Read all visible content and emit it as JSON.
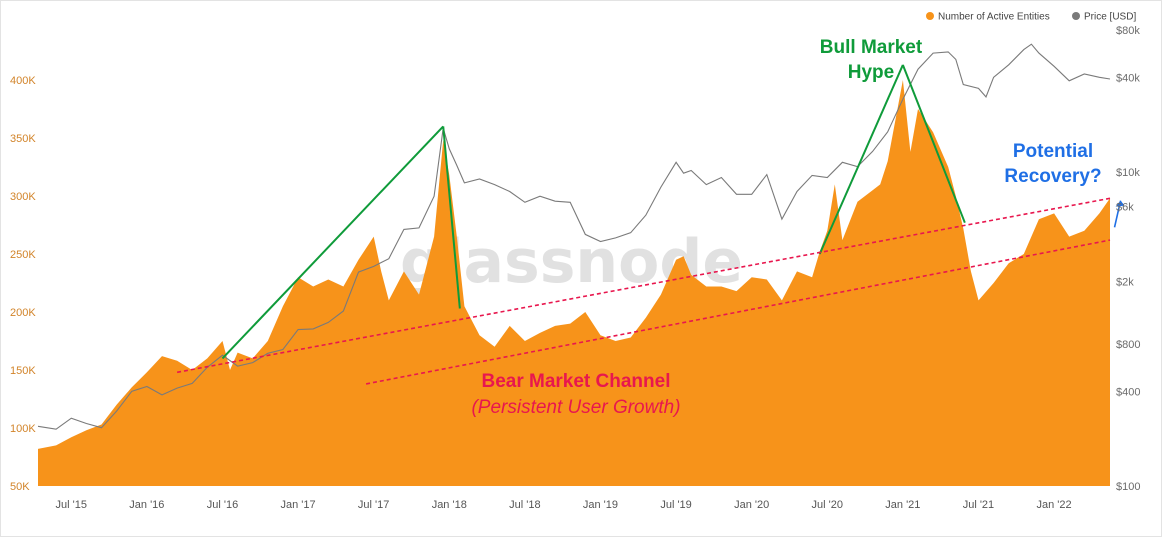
{
  "chart_data": {
    "type": "area",
    "title": "",
    "watermark": "glassnode",
    "legend": {
      "placement": "top-right",
      "entries": [
        {
          "label": "Number of Active Entities",
          "color": "#f7931a"
        },
        {
          "label": "Price [USD]",
          "color": "#7a7a7a"
        }
      ]
    },
    "y_left": {
      "label": "",
      "scale": "linear",
      "range": [
        50000,
        420000
      ],
      "ticks": [
        {
          "value": 50000,
          "label": "50K"
        },
        {
          "value": 100000,
          "label": "100K"
        },
        {
          "value": 150000,
          "label": "150K"
        },
        {
          "value": 200000,
          "label": "200K"
        },
        {
          "value": 250000,
          "label": "250K"
        },
        {
          "value": 300000,
          "label": "300K"
        },
        {
          "value": 350000,
          "label": "350K"
        },
        {
          "value": 400000,
          "label": "400K"
        }
      ]
    },
    "y_right": {
      "label": "",
      "scale": "log",
      "range": [
        100,
        80000
      ],
      "ticks": [
        {
          "value": 100,
          "label": "$100"
        },
        {
          "value": 400,
          "label": "$400"
        },
        {
          "value": 800,
          "label": "$800"
        },
        {
          "value": 2000,
          "label": "$2k"
        },
        {
          "value": 6000,
          "label": "$6k"
        },
        {
          "value": 10000,
          "label": "$10k"
        },
        {
          "value": 40000,
          "label": "$40k"
        },
        {
          "value": 80000,
          "label": "$80k"
        }
      ]
    },
    "x_axis": {
      "range": [
        2015.28,
        2022.37
      ],
      "ticks": [
        {
          "value": 2015.5,
          "label": "Jul '15"
        },
        {
          "value": 2016.0,
          "label": "Jan '16"
        },
        {
          "value": 2016.5,
          "label": "Jul '16"
        },
        {
          "value": 2017.0,
          "label": "Jan '17"
        },
        {
          "value": 2017.5,
          "label": "Jul '17"
        },
        {
          "value": 2018.0,
          "label": "Jan '18"
        },
        {
          "value": 2018.5,
          "label": "Jul '18"
        },
        {
          "value": 2019.0,
          "label": "Jan '19"
        },
        {
          "value": 2019.5,
          "label": "Jul '19"
        },
        {
          "value": 2020.0,
          "label": "Jan '20"
        },
        {
          "value": 2020.5,
          "label": "Jul '20"
        },
        {
          "value": 2021.0,
          "label": "Jan '21"
        },
        {
          "value": 2021.5,
          "label": "Jul '21"
        },
        {
          "value": 2022.0,
          "label": "Jan '22"
        }
      ]
    },
    "series": [
      {
        "name": "Number of Active Entities",
        "axis": "left",
        "type": "area",
        "color": "#f7931a",
        "points": [
          [
            2015.28,
            82000
          ],
          [
            2015.4,
            85000
          ],
          [
            2015.5,
            92000
          ],
          [
            2015.6,
            98000
          ],
          [
            2015.7,
            103000
          ],
          [
            2015.8,
            120000
          ],
          [
            2015.9,
            135000
          ],
          [
            2016.0,
            148000
          ],
          [
            2016.1,
            162000
          ],
          [
            2016.2,
            158000
          ],
          [
            2016.3,
            150000
          ],
          [
            2016.4,
            160000
          ],
          [
            2016.5,
            175000
          ],
          [
            2016.55,
            150000
          ],
          [
            2016.6,
            165000
          ],
          [
            2016.7,
            160000
          ],
          [
            2016.8,
            175000
          ],
          [
            2016.9,
            205000
          ],
          [
            2017.0,
            230000
          ],
          [
            2017.1,
            222000
          ],
          [
            2017.2,
            228000
          ],
          [
            2017.3,
            222000
          ],
          [
            2017.4,
            245000
          ],
          [
            2017.5,
            265000
          ],
          [
            2017.55,
            235000
          ],
          [
            2017.6,
            210000
          ],
          [
            2017.7,
            235000
          ],
          [
            2017.8,
            215000
          ],
          [
            2017.9,
            265000
          ],
          [
            2017.96,
            348000
          ],
          [
            2018.0,
            318000
          ],
          [
            2018.05,
            265000
          ],
          [
            2018.1,
            205000
          ],
          [
            2018.2,
            180000
          ],
          [
            2018.3,
            170000
          ],
          [
            2018.4,
            188000
          ],
          [
            2018.5,
            175000
          ],
          [
            2018.6,
            182000
          ],
          [
            2018.7,
            188000
          ],
          [
            2018.8,
            190000
          ],
          [
            2018.9,
            200000
          ],
          [
            2019.0,
            180000
          ],
          [
            2019.1,
            175000
          ],
          [
            2019.2,
            178000
          ],
          [
            2019.3,
            195000
          ],
          [
            2019.4,
            215000
          ],
          [
            2019.5,
            245000
          ],
          [
            2019.55,
            248000
          ],
          [
            2019.6,
            232000
          ],
          [
            2019.7,
            222000
          ],
          [
            2019.8,
            222000
          ],
          [
            2019.9,
            218000
          ],
          [
            2020.0,
            230000
          ],
          [
            2020.1,
            228000
          ],
          [
            2020.2,
            210000
          ],
          [
            2020.3,
            235000
          ],
          [
            2020.4,
            230000
          ],
          [
            2020.45,
            252000
          ],
          [
            2020.5,
            270000
          ],
          [
            2020.55,
            310000
          ],
          [
            2020.6,
            262000
          ],
          [
            2020.7,
            295000
          ],
          [
            2020.8,
            305000
          ],
          [
            2020.85,
            310000
          ],
          [
            2020.9,
            330000
          ],
          [
            2020.95,
            365000
          ],
          [
            2021.0,
            400000
          ],
          [
            2021.05,
            338000
          ],
          [
            2021.1,
            375000
          ],
          [
            2021.2,
            355000
          ],
          [
            2021.3,
            325000
          ],
          [
            2021.35,
            300000
          ],
          [
            2021.4,
            272000
          ],
          [
            2021.45,
            235000
          ],
          [
            2021.5,
            210000
          ],
          [
            2021.6,
            225000
          ],
          [
            2021.7,
            242000
          ],
          [
            2021.8,
            250000
          ],
          [
            2021.9,
            280000
          ],
          [
            2022.0,
            285000
          ],
          [
            2022.1,
            265000
          ],
          [
            2022.2,
            270000
          ],
          [
            2022.3,
            285000
          ],
          [
            2022.37,
            298000
          ]
        ]
      },
      {
        "name": "Price [USD]",
        "axis": "right",
        "type": "line",
        "color": "#7a7a7a",
        "points": [
          [
            2015.28,
            240
          ],
          [
            2015.4,
            230
          ],
          [
            2015.5,
            270
          ],
          [
            2015.6,
            250
          ],
          [
            2015.7,
            235
          ],
          [
            2015.8,
            300
          ],
          [
            2015.9,
            400
          ],
          [
            2016.0,
            430
          ],
          [
            2016.1,
            380
          ],
          [
            2016.2,
            420
          ],
          [
            2016.3,
            450
          ],
          [
            2016.4,
            570
          ],
          [
            2016.5,
            680
          ],
          [
            2016.6,
            580
          ],
          [
            2016.7,
            610
          ],
          [
            2016.8,
            700
          ],
          [
            2016.9,
            740
          ],
          [
            2017.0,
            990
          ],
          [
            2017.1,
            1000
          ],
          [
            2017.2,
            1100
          ],
          [
            2017.3,
            1300
          ],
          [
            2017.4,
            2300
          ],
          [
            2017.5,
            2500
          ],
          [
            2017.6,
            2800
          ],
          [
            2017.7,
            4300
          ],
          [
            2017.8,
            4400
          ],
          [
            2017.9,
            7000
          ],
          [
            2017.96,
            19000
          ],
          [
            2018.0,
            14000
          ],
          [
            2018.05,
            11000
          ],
          [
            2018.1,
            8500
          ],
          [
            2018.2,
            9000
          ],
          [
            2018.3,
            8300
          ],
          [
            2018.4,
            7500
          ],
          [
            2018.5,
            6400
          ],
          [
            2018.6,
            7000
          ],
          [
            2018.7,
            6500
          ],
          [
            2018.8,
            6400
          ],
          [
            2018.9,
            4000
          ],
          [
            2019.0,
            3600
          ],
          [
            2019.1,
            3800
          ],
          [
            2019.2,
            4100
          ],
          [
            2019.3,
            5300
          ],
          [
            2019.4,
            8000
          ],
          [
            2019.5,
            11500
          ],
          [
            2019.55,
            9800
          ],
          [
            2019.6,
            10200
          ],
          [
            2019.7,
            8300
          ],
          [
            2019.8,
            9200
          ],
          [
            2019.9,
            7200
          ],
          [
            2020.0,
            7200
          ],
          [
            2020.1,
            9600
          ],
          [
            2020.2,
            5000
          ],
          [
            2020.3,
            7500
          ],
          [
            2020.4,
            9500
          ],
          [
            2020.5,
            9200
          ],
          [
            2020.6,
            11500
          ],
          [
            2020.7,
            10800
          ],
          [
            2020.8,
            13500
          ],
          [
            2020.9,
            18000
          ],
          [
            2021.0,
            29000
          ],
          [
            2021.1,
            45000
          ],
          [
            2021.2,
            57000
          ],
          [
            2021.3,
            58000
          ],
          [
            2021.35,
            52000
          ],
          [
            2021.4,
            36000
          ],
          [
            2021.5,
            34000
          ],
          [
            2021.55,
            30000
          ],
          [
            2021.6,
            40000
          ],
          [
            2021.7,
            48000
          ],
          [
            2021.8,
            60000
          ],
          [
            2021.85,
            65000
          ],
          [
            2021.9,
            57000
          ],
          [
            2022.0,
            47000
          ],
          [
            2022.1,
            38000
          ],
          [
            2022.2,
            42000
          ],
          [
            2022.3,
            40000
          ],
          [
            2022.37,
            39000
          ]
        ]
      }
    ],
    "annotations": {
      "bull_market_title_1": "Bull Market",
      "bull_market_title_2": "Hype",
      "potential_recovery_1": "Potential",
      "potential_recovery_2": "Recovery?",
      "bear_channel_title": "Bear Market Channel",
      "bear_channel_subtitle": "(Persistent User Growth)",
      "trend_lines": [
        {
          "name": "bull-2016-2017-rise",
          "color": "#0f9b3a",
          "from": [
            2016.5,
            160000
          ],
          "to": [
            2017.96,
            360000
          ]
        },
        {
          "name": "bull-2017-2018-fall",
          "color": "#0f9b3a",
          "from": [
            2017.96,
            360000
          ],
          "to": [
            2018.07,
            203000
          ]
        },
        {
          "name": "bull-2020-2021-rise",
          "color": "#0f9b3a",
          "from": [
            2020.45,
            250000
          ],
          "to": [
            2021.0,
            413000
          ]
        },
        {
          "name": "bull-2021-fall",
          "color": "#0f9b3a",
          "from": [
            2021.0,
            413000
          ],
          "to": [
            2021.41,
            277000
          ]
        }
      ],
      "channel_lines": [
        {
          "name": "channel-upper",
          "color": "#e8174e",
          "from": [
            2016.2,
            148000
          ],
          "to": [
            2022.37,
            298000
          ]
        },
        {
          "name": "channel-lower",
          "color": "#e8174e",
          "from": [
            2017.45,
            138000
          ],
          "to": [
            2022.37,
            262000
          ]
        }
      ],
      "recovery_arrow": {
        "color": "#1f6fe5",
        "from": [
          2022.4,
          273000
        ],
        "to": [
          2022.44,
          296000
        ]
      }
    }
  }
}
